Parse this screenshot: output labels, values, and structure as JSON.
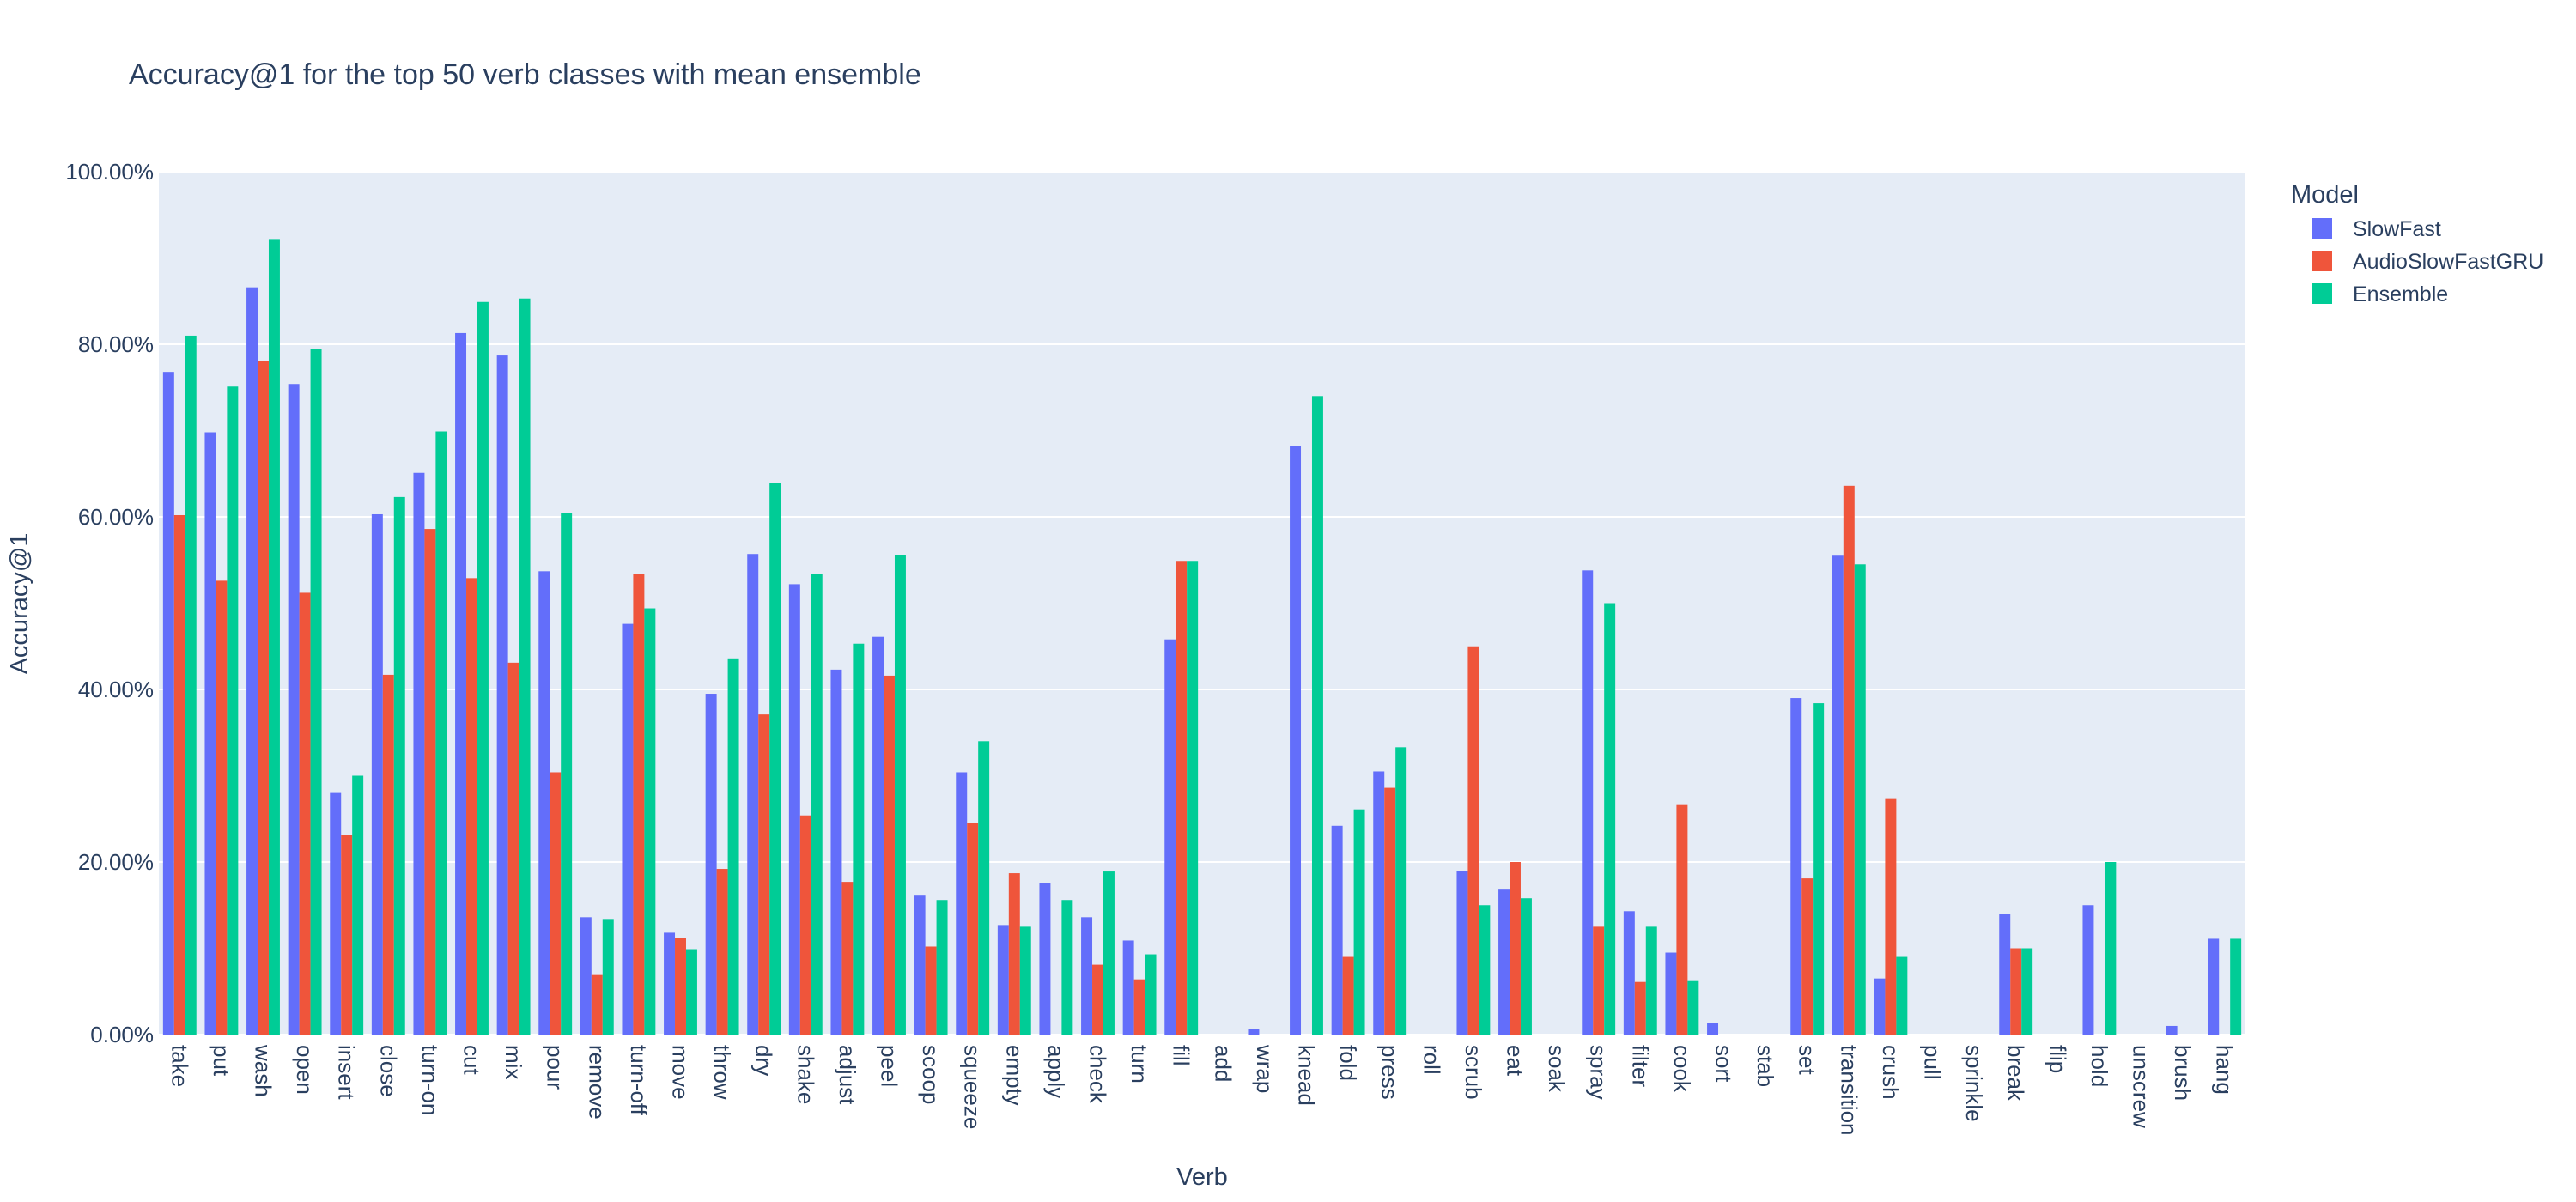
{
  "chart_data": {
    "type": "bar",
    "title": "Accuracy@1 for the top 50 verb classes with mean ensemble",
    "xlabel": "Verb",
    "ylabel": "Accuracy@1",
    "ylim": [
      0,
      100
    ],
    "yticks": [
      "0.00%",
      "20.00%",
      "40.00%",
      "60.00%",
      "80.00%",
      "100.00%"
    ],
    "grid": true,
    "legend_title": "Model",
    "legend_position": "top-right",
    "categories": [
      "take",
      "put",
      "wash",
      "open",
      "insert",
      "close",
      "turn-on",
      "cut",
      "mix",
      "pour",
      "remove",
      "turn-off",
      "move",
      "throw",
      "dry",
      "shake",
      "adjust",
      "peel",
      "scoop",
      "squeeze",
      "empty",
      "apply",
      "check",
      "turn",
      "fill",
      "add",
      "wrap",
      "knead",
      "fold",
      "press",
      "roll",
      "scrub",
      "eat",
      "soak",
      "spray",
      "filter",
      "cook",
      "sort",
      "stab",
      "set",
      "transition",
      "crush",
      "pull",
      "sprinkle",
      "break",
      "flip",
      "hold",
      "unscrew",
      "brush",
      "hang"
    ],
    "series": [
      {
        "name": "SlowFast",
        "color": "#636efa",
        "values": [
          76.8,
          69.8,
          86.6,
          75.4,
          28.0,
          60.3,
          65.1,
          81.3,
          78.7,
          53.7,
          13.6,
          47.6,
          11.8,
          39.5,
          55.7,
          52.2,
          42.3,
          46.1,
          16.1,
          30.4,
          12.7,
          17.6,
          13.6,
          10.9,
          45.8,
          0,
          0.6,
          68.2,
          24.2,
          30.5,
          0,
          19.0,
          16.8,
          0,
          53.8,
          14.3,
          9.5,
          1.3,
          0,
          39.0,
          55.5,
          6.5,
          0,
          0,
          14.0,
          0,
          15.0,
          0,
          1.0,
          11.1
        ]
      },
      {
        "name": "AudioSlowFastGRU",
        "color": "#ef553b",
        "values": [
          60.2,
          52.6,
          78.1,
          51.2,
          23.1,
          41.7,
          58.6,
          52.9,
          43.1,
          30.4,
          6.9,
          53.4,
          11.2,
          19.2,
          37.1,
          25.4,
          17.7,
          41.6,
          10.2,
          24.5,
          18.7,
          0,
          8.1,
          6.4,
          54.9,
          0,
          0,
          0,
          9.0,
          28.6,
          0,
          45.0,
          20.0,
          0,
          12.5,
          6.1,
          26.6,
          0,
          0,
          18.1,
          63.6,
          27.3,
          0,
          0,
          10.0,
          0,
          0,
          0,
          0,
          0
        ]
      },
      {
        "name": "Ensemble",
        "color": "#00cc96",
        "values": [
          81.0,
          75.1,
          92.2,
          79.5,
          30.0,
          62.3,
          69.9,
          84.9,
          85.3,
          60.4,
          13.4,
          49.4,
          9.9,
          43.6,
          63.9,
          53.4,
          45.3,
          55.6,
          15.6,
          34.0,
          12.5,
          15.6,
          18.9,
          9.3,
          54.9,
          0,
          0,
          74.0,
          26.1,
          33.3,
          0,
          15.0,
          15.8,
          0,
          50.0,
          12.5,
          6.2,
          0,
          0,
          38.4,
          54.5,
          9.0,
          0,
          0,
          10.0,
          0,
          20.0,
          0,
          0,
          11.1
        ]
      }
    ]
  }
}
